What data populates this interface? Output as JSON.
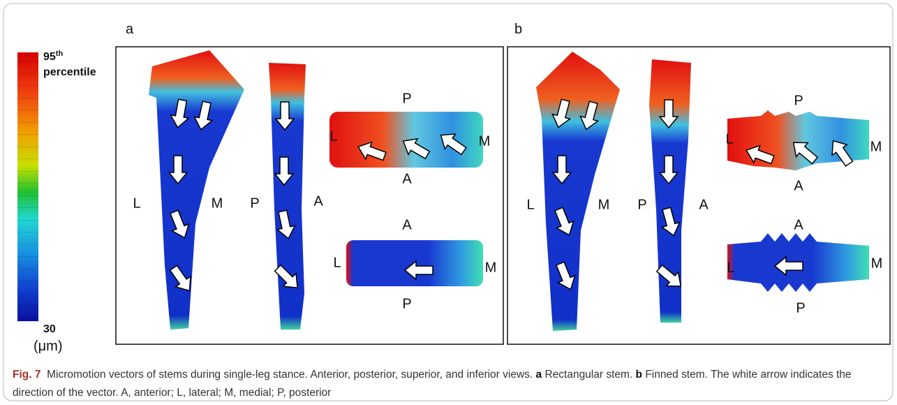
{
  "colorbar": {
    "max_value": "95",
    "max_suffix": "th",
    "max_note": "percentile",
    "min_value": "30",
    "unit": "(μm)"
  },
  "panels": [
    {
      "label": "a",
      "anterior": {
        "left": "L",
        "right": "M"
      },
      "lateral": {
        "left": "P",
        "right": "A"
      },
      "superior": {
        "top": "P",
        "left": "L",
        "right": "M",
        "bottom": "A"
      },
      "inferior": {
        "top": "A",
        "left": "L",
        "right": "M",
        "bottom": "P"
      }
    },
    {
      "label": "b",
      "anterior": {
        "left": "L",
        "right": "M"
      },
      "lateral": {
        "left": "P",
        "right": "A"
      },
      "superior": {
        "top": "P",
        "left": "L",
        "right": "M",
        "bottom": "A"
      },
      "inferior": {
        "top": "A",
        "left": "L",
        "right": "M",
        "bottom": "P"
      }
    }
  ],
  "caption": {
    "figure": "Fig. 7",
    "text": "Micromotion vectors of stems during single-leg stance. Anterior, posterior, superior, and inferior views.",
    "a_label": "a",
    "a_text": "Rectangular stem.",
    "b_label": "b",
    "b_text": "Finned stem. The white arrow indicates the direction of the vector. A, anterior; L, lateral; M, medial; P, posterior"
  }
}
